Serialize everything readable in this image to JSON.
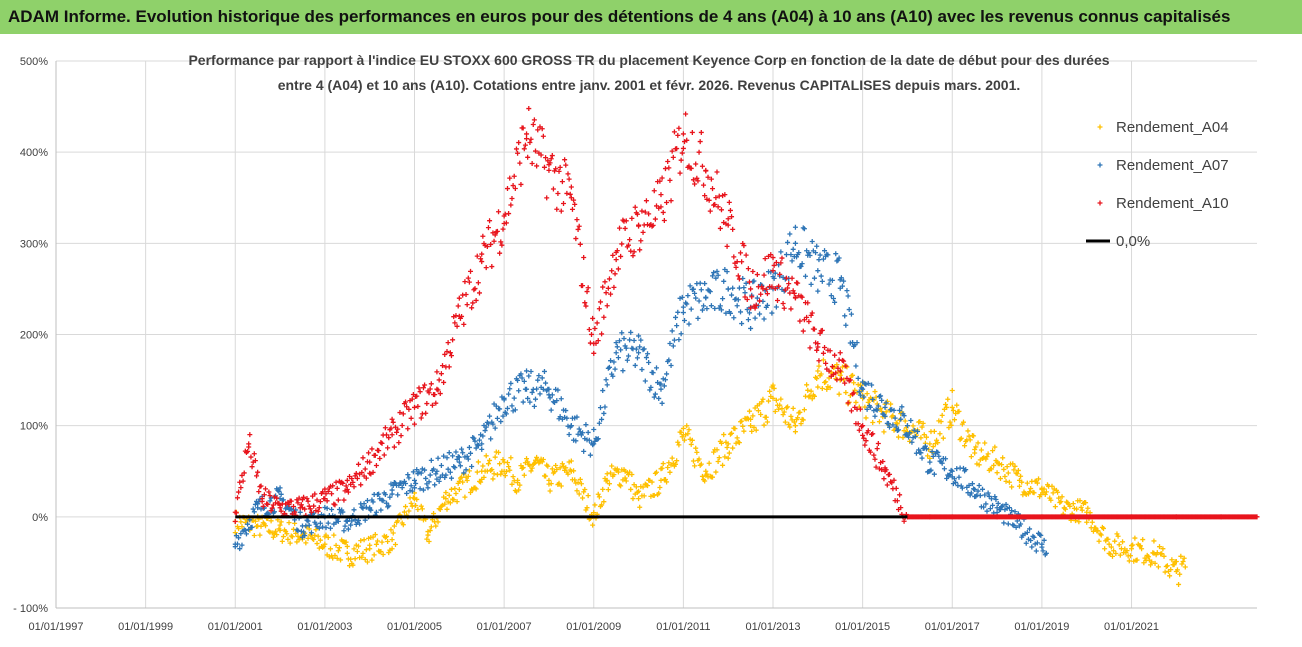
{
  "header": {
    "title": "ADAM Informe. Evolution historique des performances en euros pour des détentions de 4 ans (A04) à 10 ans (A10) avec les revenus connus capitalisés"
  },
  "chart_data": {
    "type": "scatter",
    "title_lines": [
      "Performance par rapport à l'indice EU STOXX 600 GROSS TR  du placement Keyence Corp en fonction de la date de début pour des durées",
      "entre 4 (A04) et 10 ans (A10). Cotations entre janv. 2001 et févr. 2026. Revenus CAPITALISES depuis mars. 2001."
    ],
    "xlabel": "",
    "ylabel": "",
    "x_range": [
      1997.0,
      2023.8
    ],
    "ylim": [
      -100,
      500
    ],
    "y_ticks": [
      -100,
      0,
      100,
      200,
      300,
      400,
      500
    ],
    "y_tick_labels": [
      "- 100%",
      "0%",
      "100%",
      "200%",
      "300%",
      "400%",
      "500%"
    ],
    "x_ticks": [
      1997,
      1999,
      2001,
      2003,
      2005,
      2007,
      2009,
      2011,
      2013,
      2015,
      2017,
      2019,
      2021
    ],
    "x_tick_labels": [
      "01/01/1997",
      "01/01/1999",
      "01/01/2001",
      "01/01/2003",
      "01/01/2005",
      "01/01/2007",
      "01/01/2009",
      "01/01/2011",
      "01/01/2013",
      "01/01/2015",
      "01/01/2017",
      "01/01/2019",
      "01/01/2021"
    ],
    "grid": true,
    "legend_position": "right",
    "series": [
      {
        "name": "Rendement_A04",
        "color": "#ffc000",
        "x": [
          2001.0,
          2001.5,
          2002.0,
          2002.5,
          2003.0,
          2003.5,
          2004.0,
          2004.5,
          2005.0,
          2005.3,
          2005.7,
          2006.0,
          2006.5,
          2007.0,
          2007.3,
          2007.7,
          2008.0,
          2008.5,
          2009.0,
          2009.3,
          2009.7,
          2010.0,
          2010.5,
          2011.0,
          2011.5,
          2012.0,
          2012.5,
          2013.0,
          2013.5,
          2014.0,
          2014.5,
          2015.0,
          2015.5,
          2016.0,
          2016.5,
          2017.0,
          2017.5,
          2018.0,
          2018.5,
          2019.0,
          2019.5,
          2020.0,
          2020.5,
          2021.0,
          2021.5,
          2022.0,
          2022.2
        ],
        "y": [
          -5,
          -10,
          -15,
          -20,
          -30,
          -40,
          -35,
          -25,
          20,
          -20,
          20,
          30,
          50,
          60,
          40,
          60,
          40,
          50,
          0,
          40,
          50,
          20,
          40,
          90,
          50,
          80,
          100,
          130,
          100,
          160,
          150,
          130,
          110,
          100,
          80,
          120,
          70,
          60,
          40,
          30,
          10,
          5,
          -30,
          -35,
          -40,
          -60,
          -55
        ]
      },
      {
        "name": "Rendement_A07",
        "color": "#2e75b6",
        "x": [
          2001.0,
          2001.5,
          2002.0,
          2002.5,
          2003.0,
          2003.5,
          2004.0,
          2004.5,
          2005.0,
          2005.5,
          2006.0,
          2006.5,
          2007.0,
          2007.5,
          2008.0,
          2008.5,
          2009.0,
          2009.5,
          2010.0,
          2010.5,
          2011.0,
          2011.5,
          2012.0,
          2012.5,
          2013.0,
          2013.5,
          2014.0,
          2014.5,
          2015.0,
          2015.5,
          2016.0,
          2016.5,
          2017.0,
          2017.5,
          2018.0,
          2018.5,
          2019.0,
          2019.1
        ],
        "y": [
          -30,
          10,
          20,
          -10,
          0,
          -5,
          10,
          25,
          40,
          50,
          60,
          80,
          130,
          140,
          140,
          100,
          80,
          180,
          180,
          140,
          230,
          240,
          250,
          230,
          250,
          300,
          270,
          260,
          140,
          120,
          100,
          60,
          50,
          30,
          10,
          -10,
          -30,
          -40
        ]
      },
      {
        "name": "Rendement_A10",
        "color": "#e8141c",
        "x": [
          2001.0,
          2001.3,
          2001.6,
          2002.0,
          2002.5,
          2003.0,
          2003.5,
          2004.0,
          2004.5,
          2005.0,
          2005.5,
          2006.0,
          2006.5,
          2007.0,
          2007.5,
          2008.0,
          2008.5,
          2009.0,
          2009.5,
          2010.0,
          2010.5,
          2011.0,
          2011.5,
          2012.0,
          2012.5,
          2013.0,
          2013.5,
          2014.0,
          2014.5,
          2015.0,
          2015.5,
          2016.0,
          2016.5,
          2017.0,
          2018.0,
          2019.0,
          2020.0,
          2021.0,
          2022.0,
          2023.0,
          2023.8
        ],
        "y": [
          5,
          80,
          20,
          10,
          10,
          20,
          30,
          60,
          90,
          120,
          140,
          220,
          280,
          330,
          420,
          380,
          350,
          190,
          290,
          320,
          340,
          420,
          380,
          320,
          250,
          270,
          240,
          190,
          160,
          100,
          50,
          0,
          0,
          0,
          0,
          0,
          0,
          0,
          0,
          0,
          0
        ]
      }
    ],
    "reference_line": {
      "name": "0,0%",
      "color": "#000000",
      "y": 0,
      "x_start": 2001.0,
      "x_end": 2023.8
    }
  }
}
